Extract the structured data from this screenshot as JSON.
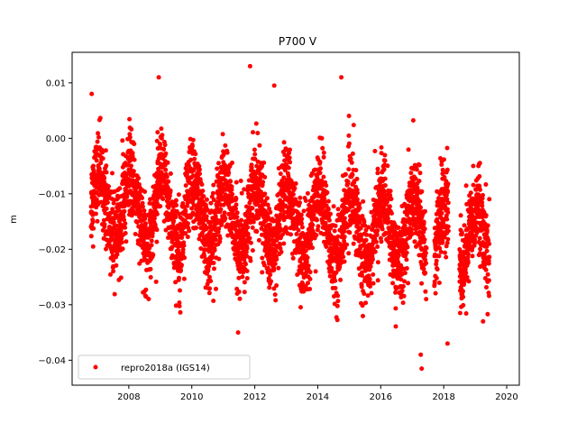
{
  "chart_data": {
    "type": "scatter",
    "title": "P700 V",
    "xlabel": "",
    "ylabel": "m",
    "xlim": [
      2006.2,
      2020.4
    ],
    "ylim": [
      -0.0445,
      0.0155
    ],
    "xticks": [
      2008,
      2010,
      2012,
      2014,
      2016,
      2018,
      2020
    ],
    "xtick_labels": [
      "2008",
      "2010",
      "2012",
      "2014",
      "2016",
      "2018",
      "2020"
    ],
    "yticks": [
      0.01,
      0.0,
      -0.01,
      -0.02,
      -0.03,
      -0.04
    ],
    "ytick_labels": [
      "0.01",
      "0.00",
      "−0.01",
      "−0.02",
      "−0.03",
      "−0.04"
    ],
    "grid": false,
    "legend_position": "bottom-left",
    "series": [
      {
        "name": "repro2018a (IGS14)",
        "color": "#ff0000",
        "marker": "circle",
        "x_range": [
          2006.8,
          2019.45
        ],
        "trend_m_per_year": -0.0005,
        "intercept_m": -0.012,
        "annual_amplitude_m": 0.006,
        "annual_peak_frac_of_year": 0.05,
        "noise_sd_m": 0.0038,
        "sampling": "daily",
        "extremes": [
          {
            "x": 2011.85,
            "y": 0.013
          },
          {
            "x": 2008.95,
            "y": 0.011
          },
          {
            "x": 2014.75,
            "y": 0.011
          },
          {
            "x": 2012.62,
            "y": 0.0095
          },
          {
            "x": 2006.82,
            "y": 0.008
          },
          {
            "x": 2017.3,
            "y": -0.0415
          },
          {
            "x": 2017.27,
            "y": -0.039
          },
          {
            "x": 2018.12,
            "y": -0.037
          },
          {
            "x": 2011.47,
            "y": -0.035
          },
          {
            "x": 2019.25,
            "y": -0.033
          }
        ]
      }
    ]
  }
}
